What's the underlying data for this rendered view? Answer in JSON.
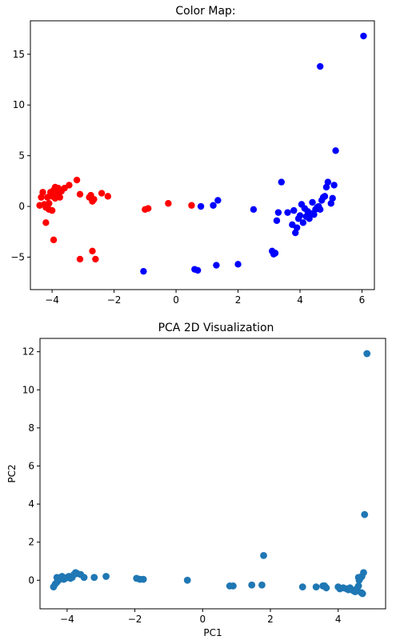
{
  "chart_data": [
    {
      "type": "scatter",
      "title": "Color Map:",
      "xlabel": "",
      "ylabel": "",
      "xlim": [
        -4.7,
        6.4
      ],
      "ylim": [
        -8.2,
        18.3
      ],
      "x_ticks": [
        -4,
        -2,
        0,
        2,
        4,
        6
      ],
      "y_ticks": [
        -5,
        0,
        5,
        10,
        15
      ],
      "x_tick_labels": [
        "−4",
        "−2",
        "0",
        "2",
        "4",
        "6"
      ],
      "y_tick_labels": [
        "−5",
        "0",
        "5",
        "10",
        "15"
      ],
      "grid": false,
      "series": [
        {
          "color": "#ff0000",
          "points": [
            [
              -4.3,
              1.4
            ],
            [
              -4.35,
              0.9
            ],
            [
              -4.25,
              0.2
            ],
            [
              -4.4,
              0.1
            ],
            [
              -4.2,
              -0.1
            ],
            [
              -4.1,
              0.3
            ],
            [
              -4.0,
              1.0
            ],
            [
              -3.95,
              1.6
            ],
            [
              -3.9,
              1.9
            ],
            [
              -3.85,
              1.2
            ],
            [
              -3.8,
              1.8
            ],
            [
              -3.75,
              0.9
            ],
            [
              -4.15,
              0.9
            ],
            [
              -4.05,
              1.4
            ],
            [
              -3.9,
              0.8
            ],
            [
              -3.7,
              1.5
            ],
            [
              -3.6,
              1.8
            ],
            [
              -4.1,
              -0.3
            ],
            [
              -4.0,
              -0.4
            ],
            [
              -4.2,
              -1.6
            ],
            [
              -3.95,
              -3.3
            ],
            [
              -3.45,
              2.1
            ],
            [
              -3.2,
              2.6
            ],
            [
              -3.1,
              1.2
            ],
            [
              -2.8,
              0.9
            ],
            [
              -2.75,
              1.1
            ],
            [
              -2.65,
              0.7
            ],
            [
              -2.7,
              0.5
            ],
            [
              -2.4,
              1.3
            ],
            [
              -2.2,
              1.0
            ],
            [
              -3.1,
              -5.2
            ],
            [
              -2.7,
              -4.4
            ],
            [
              -2.6,
              -5.2
            ],
            [
              -1.0,
              -0.3
            ],
            [
              -0.9,
              -0.2
            ],
            [
              -0.25,
              0.3
            ],
            [
              0.5,
              0.1
            ]
          ]
        },
        {
          "color": "#0000ff",
          "points": [
            [
              -1.05,
              -6.4
            ],
            [
              0.6,
              -6.2
            ],
            [
              0.7,
              -6.3
            ],
            [
              0.8,
              0.0
            ],
            [
              1.2,
              0.1
            ],
            [
              1.3,
              -5.8
            ],
            [
              1.35,
              0.6
            ],
            [
              2.0,
              -5.7
            ],
            [
              2.5,
              -0.3
            ],
            [
              3.1,
              -4.4
            ],
            [
              3.15,
              -4.7
            ],
            [
              3.2,
              -4.6
            ],
            [
              3.25,
              -1.4
            ],
            [
              3.3,
              -0.6
            ],
            [
              3.4,
              2.4
            ],
            [
              3.6,
              -0.6
            ],
            [
              3.75,
              -1.8
            ],
            [
              3.8,
              -0.4
            ],
            [
              3.85,
              -2.6
            ],
            [
              3.9,
              -2.1
            ],
            [
              3.95,
              -1.2
            ],
            [
              4.0,
              -0.9
            ],
            [
              4.05,
              0.2
            ],
            [
              4.1,
              -1.6
            ],
            [
              4.15,
              -0.2
            ],
            [
              4.2,
              -1.0
            ],
            [
              4.25,
              -0.5
            ],
            [
              4.3,
              -1.2
            ],
            [
              4.35,
              -0.7
            ],
            [
              4.4,
              0.4
            ],
            [
              4.45,
              -0.8
            ],
            [
              4.5,
              -0.3
            ],
            [
              4.55,
              -0.1
            ],
            [
              4.6,
              0.0
            ],
            [
              4.65,
              -0.3
            ],
            [
              4.7,
              0.6
            ],
            [
              4.75,
              0.9
            ],
            [
              4.8,
              1.0
            ],
            [
              4.85,
              1.9
            ],
            [
              4.9,
              2.4
            ],
            [
              5.0,
              0.3
            ],
            [
              5.05,
              0.8
            ],
            [
              5.1,
              2.1
            ],
            [
              5.15,
              5.5
            ],
            [
              4.65,
              13.8
            ],
            [
              6.05,
              16.8
            ]
          ]
        }
      ]
    },
    {
      "type": "scatter",
      "title": "PCA 2D Visualization",
      "xlabel": "PC1",
      "ylabel": "PC2",
      "xlim": [
        -4.8,
        5.4
      ],
      "ylim": [
        -1.5,
        12.7
      ],
      "x_ticks": [
        -4,
        -2,
        0,
        2,
        4
      ],
      "y_ticks": [
        0,
        2,
        4,
        6,
        8,
        10,
        12
      ],
      "x_tick_labels": [
        "−4",
        "−2",
        "0",
        "2",
        "4"
      ],
      "y_tick_labels": [
        "0",
        "2",
        "4",
        "6",
        "8",
        "10",
        "12"
      ],
      "grid": false,
      "series": [
        {
          "color": "#1f77b4",
          "points": [
            [
              -4.4,
              -0.35
            ],
            [
              -4.35,
              -0.2
            ],
            [
              -4.3,
              -0.1
            ],
            [
              -4.25,
              0.0
            ],
            [
              -4.2,
              0.1
            ],
            [
              -4.3,
              0.15
            ],
            [
              -4.15,
              0.2
            ],
            [
              -4.1,
              0.05
            ],
            [
              -4.05,
              0.1
            ],
            [
              -4.0,
              0.15
            ],
            [
              -3.95,
              0.2
            ],
            [
              -3.9,
              0.1
            ],
            [
              -3.85,
              0.15
            ],
            [
              -3.8,
              0.3
            ],
            [
              -3.75,
              0.4
            ],
            [
              -3.7,
              0.35
            ],
            [
              -3.6,
              0.3
            ],
            [
              -3.5,
              0.15
            ],
            [
              -3.2,
              0.15
            ],
            [
              -2.85,
              0.2
            ],
            [
              -1.95,
              0.1
            ],
            [
              -1.85,
              0.05
            ],
            [
              -1.75,
              0.05
            ],
            [
              -0.45,
              0.0
            ],
            [
              0.8,
              -0.3
            ],
            [
              0.9,
              -0.3
            ],
            [
              1.45,
              -0.25
            ],
            [
              1.75,
              -0.25
            ],
            [
              1.8,
              1.3
            ],
            [
              2.95,
              -0.35
            ],
            [
              3.35,
              -0.35
            ],
            [
              3.55,
              -0.3
            ],
            [
              3.6,
              -0.3
            ],
            [
              3.65,
              -0.4
            ],
            [
              4.0,
              -0.35
            ],
            [
              4.05,
              -0.45
            ],
            [
              4.15,
              -0.4
            ],
            [
              4.25,
              -0.45
            ],
            [
              4.3,
              -0.5
            ],
            [
              4.35,
              -0.4
            ],
            [
              4.4,
              -0.5
            ],
            [
              4.45,
              -0.55
            ],
            [
              4.5,
              -0.6
            ],
            [
              4.55,
              -0.45
            ],
            [
              4.6,
              -0.3
            ],
            [
              4.62,
              0.0
            ],
            [
              4.65,
              0.1
            ],
            [
              4.6,
              0.15
            ],
            [
              4.7,
              0.2
            ],
            [
              4.68,
              -0.65
            ],
            [
              4.72,
              -0.7
            ],
            [
              4.75,
              0.4
            ],
            [
              4.78,
              3.45
            ],
            [
              4.85,
              11.9
            ]
          ]
        }
      ]
    }
  ]
}
